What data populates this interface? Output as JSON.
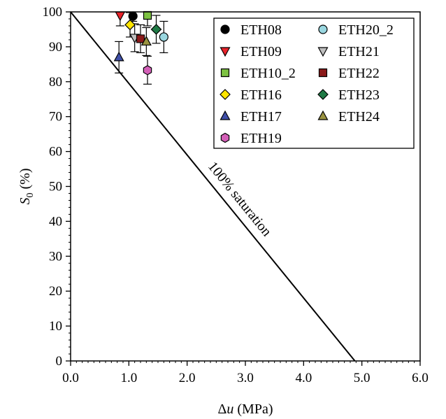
{
  "chart_data": {
    "type": "scatter",
    "xlabel": {
      "symbol": "Δ",
      "var": "u",
      "unit": " (MPa)"
    },
    "ylabel": {
      "var": "S",
      "sub": "0",
      "unit": " (%)"
    },
    "xlim": [
      0,
      6
    ],
    "ylim": [
      0,
      100
    ],
    "xticks": [
      0,
      1,
      2,
      3,
      4,
      5,
      6
    ],
    "xtick_labels": [
      "0.0",
      "1.0",
      "2.0",
      "3.0",
      "4.0",
      "5.0",
      "6.0"
    ],
    "yticks": [
      0,
      10,
      20,
      30,
      40,
      50,
      60,
      70,
      80,
      90,
      100
    ],
    "ytick_labels": [
      "0",
      "10",
      "20",
      "30",
      "40",
      "50",
      "60",
      "70",
      "80",
      "90",
      "100"
    ],
    "grid": false,
    "legend_position": "top-right",
    "reference_line": {
      "x": [
        0,
        4.88
      ],
      "y": [
        100,
        0
      ],
      "label": "100% saturation"
    },
    "series": [
      {
        "name": "ETH08",
        "marker": "circle",
        "color": "#000000",
        "x": 1.07,
        "y": 98.8,
        "yerr": 1.5
      },
      {
        "name": "ETH09",
        "marker": "triangle-down",
        "color": "#e8232a",
        "x": 0.85,
        "y": 99.0,
        "yerr": 3.0
      },
      {
        "name": "ETH10_2",
        "marker": "square",
        "color": "#7dc242",
        "x": 1.32,
        "y": 99.0,
        "yerr": 3.0
      },
      {
        "name": "ETH16",
        "marker": "diamond",
        "color": "#ffe500",
        "x": 1.02,
        "y": 96.3,
        "yerr": 3.5
      },
      {
        "name": "ETH17",
        "marker": "triangle-up",
        "color": "#3f4fa8",
        "x": 0.83,
        "y": 87.0,
        "yerr": 4.5
      },
      {
        "name": "ETH19",
        "marker": "hexagon",
        "color": "#d35fb7",
        "x": 1.32,
        "y": 83.3,
        "yerr": 4.0
      },
      {
        "name": "ETH20_2",
        "marker": "circle",
        "color": "#9ad7e0",
        "x": 1.6,
        "y": 92.8,
        "yerr": 4.5
      },
      {
        "name": "ETH21",
        "marker": "triangle-down",
        "color": "#bfbfbf",
        "x": 1.1,
        "y": 92.6,
        "yerr": 4.0
      },
      {
        "name": "ETH22",
        "marker": "square",
        "color": "#8b1a1a",
        "x": 1.2,
        "y": 92.3,
        "yerr": 4.0
      },
      {
        "name": "ETH23",
        "marker": "diamond",
        "color": "#1f7a45",
        "x": 1.47,
        "y": 95.0,
        "yerr": 4.0
      },
      {
        "name": "ETH24",
        "marker": "triangle-up",
        "color": "#9a9340",
        "x": 1.3,
        "y": 91.5,
        "yerr": 4.0
      }
    ],
    "legend_order": [
      [
        "ETH08",
        "ETH20_2"
      ],
      [
        "ETH09",
        "ETH21"
      ],
      [
        "ETH10_2",
        "ETH22"
      ],
      [
        "ETH16",
        "ETH23"
      ],
      [
        "ETH17",
        "ETH24"
      ],
      [
        "ETH19",
        null
      ]
    ]
  }
}
